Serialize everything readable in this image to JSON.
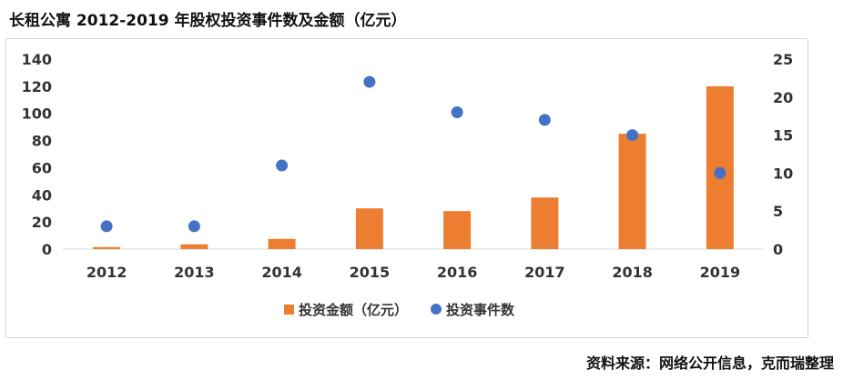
{
  "title": "长租公寓 2012-2019 年股权投资事件数及金额（亿元）",
  "source": "资料来源：网络公开信息，克而瑞整理",
  "colors": {
    "bar": "#ed7d31",
    "dot": "#4472c4",
    "axis": "#d9d9d9"
  },
  "chart_data": {
    "type": "bar",
    "categories": [
      "2012",
      "2013",
      "2014",
      "2015",
      "2016",
      "2017",
      "2018",
      "2019"
    ],
    "series": [
      {
        "name": "投资金额（亿元）",
        "type": "bar",
        "axis": "left",
        "values": [
          1.5,
          3.5,
          7.5,
          30,
          28,
          38,
          85,
          120
        ]
      },
      {
        "name": "投资事件数",
        "type": "scatter",
        "axis": "right",
        "values": [
          3,
          3,
          11,
          22,
          18,
          17,
          15,
          10
        ]
      }
    ],
    "ylim_left": [
      0,
      140
    ],
    "yticks_left": [
      "0",
      "20",
      "40",
      "60",
      "80",
      "100",
      "120",
      "140"
    ],
    "ylim_right": [
      0,
      25
    ],
    "yticks_right": [
      "0",
      "5",
      "10",
      "15",
      "20",
      "25"
    ],
    "legend": {
      "position": "bottom",
      "items": [
        "投资金额（亿元）",
        "投资事件数"
      ]
    },
    "grid": false
  }
}
